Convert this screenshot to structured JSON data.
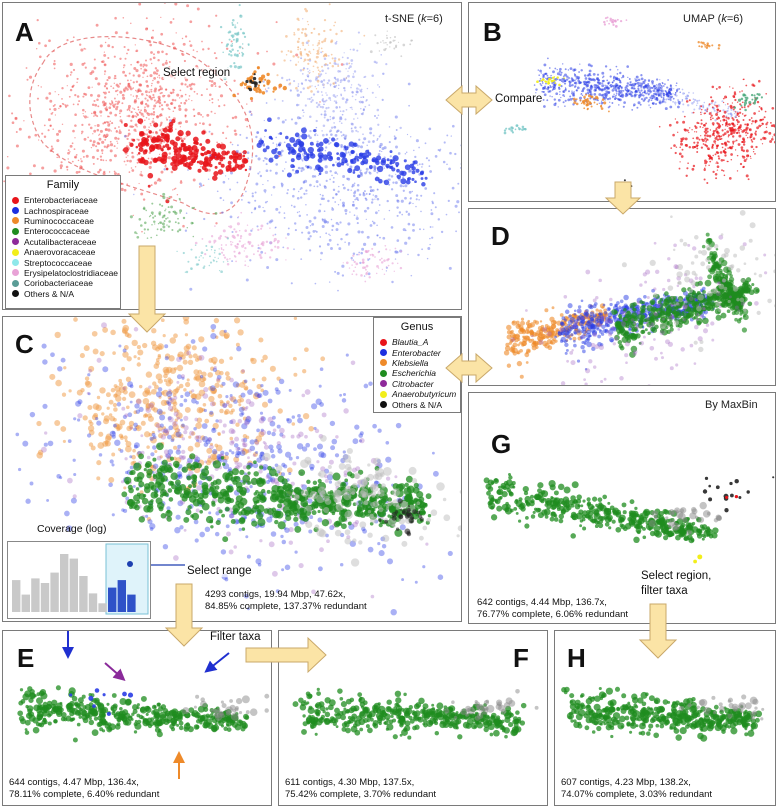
{
  "panels": {
    "A": {
      "label": "A",
      "title": "t-SNE (k=6)",
      "title_pre": "t-SNE (",
      "title_k": "k",
      "title_post": "=6)",
      "annotation": "Select region"
    },
    "B": {
      "label": "B",
      "title": "UMAP (k=6)",
      "title_pre": "UMAP (",
      "title_k": "k",
      "title_post": "=6)",
      "annotation": "Compare"
    },
    "C": {
      "label": "C",
      "stats_line1": "4293 contigs, 19.94 Mbp, 47.62x,",
      "stats_line2": "84.85% complete, 137.37% redundant",
      "annotation": "Select range"
    },
    "D": {
      "label": "D"
    },
    "E": {
      "label": "E",
      "stats_line1": "644 contigs, 4.47 Mbp, 136.4x,",
      "stats_line2": "78.11% complete, 6.40% redundant",
      "annotation": "Filter taxa"
    },
    "F": {
      "label": "F",
      "stats_line1": "611 contigs, 4.30 Mbp, 137.5x,",
      "stats_line2": "75.42% complete, 3.70% redundant"
    },
    "G": {
      "label": "G",
      "title": "By MaxBin",
      "stats_line1": "642 contigs, 4.44 Mbp, 136.7x,",
      "stats_line2": "76.77% complete, 6.06% redundant",
      "annotation_line1": "Select region,",
      "annotation_line2": "filter taxa"
    },
    "H": {
      "label": "H",
      "stats_line1": "607 contigs, 4.23 Mbp, 138.2x,",
      "stats_line2": "74.07% complete, 3.03% redundant"
    }
  },
  "family_legend": {
    "title": "Family",
    "items": [
      {
        "label": "Enterobacteriaceae",
        "color": "#e8141a"
      },
      {
        "label": "Lachnospiraceae",
        "color": "#1c2fe0"
      },
      {
        "label": "Ruminococcaceae",
        "color": "#ee8a2a"
      },
      {
        "label": "Enterococcaceae",
        "color": "#1f8c1f"
      },
      {
        "label": "Acutalibacteraceae",
        "color": "#8e2a9a"
      },
      {
        "label": "Anaerovoracaceae",
        "color": "#f2ee1a"
      },
      {
        "label": "Streptococcaceae",
        "color": "#8ee8ea"
      },
      {
        "label": "Erysipelatoclostridiaceae",
        "color": "#e8a2d6"
      },
      {
        "label": "Coriobacteriaceae",
        "color": "#5a9c96"
      },
      {
        "label": "Others & N/A",
        "color": "#111111"
      }
    ]
  },
  "genus_legend": {
    "title": "Genus",
    "items": [
      {
        "label": "Blautia_A",
        "color": "#e8141a",
        "italic": true
      },
      {
        "label": "Enterobacter",
        "color": "#1c2fe0",
        "italic": true
      },
      {
        "label": "Klebsiella",
        "color": "#ee8a2a",
        "italic": true
      },
      {
        "label": "Escherichia",
        "color": "#1f8c1f",
        "italic": true
      },
      {
        "label": "Citrobacter",
        "color": "#8e2a9a",
        "italic": true
      },
      {
        "label": "Anaerobutyricum",
        "color": "#f2ee1a",
        "italic": true
      },
      {
        "label": "Others & N/A",
        "color": "#111111",
        "italic": false
      }
    ]
  },
  "coverage_histogram": {
    "title": "Coverage (log)",
    "bars": [
      0.55,
      0.3,
      0.58,
      0.5,
      0.68,
      1.0,
      0.92,
      0.62,
      0.32,
      0.15,
      0.42,
      0.55,
      0.3
    ],
    "selected_from_index": 10
  }
}
